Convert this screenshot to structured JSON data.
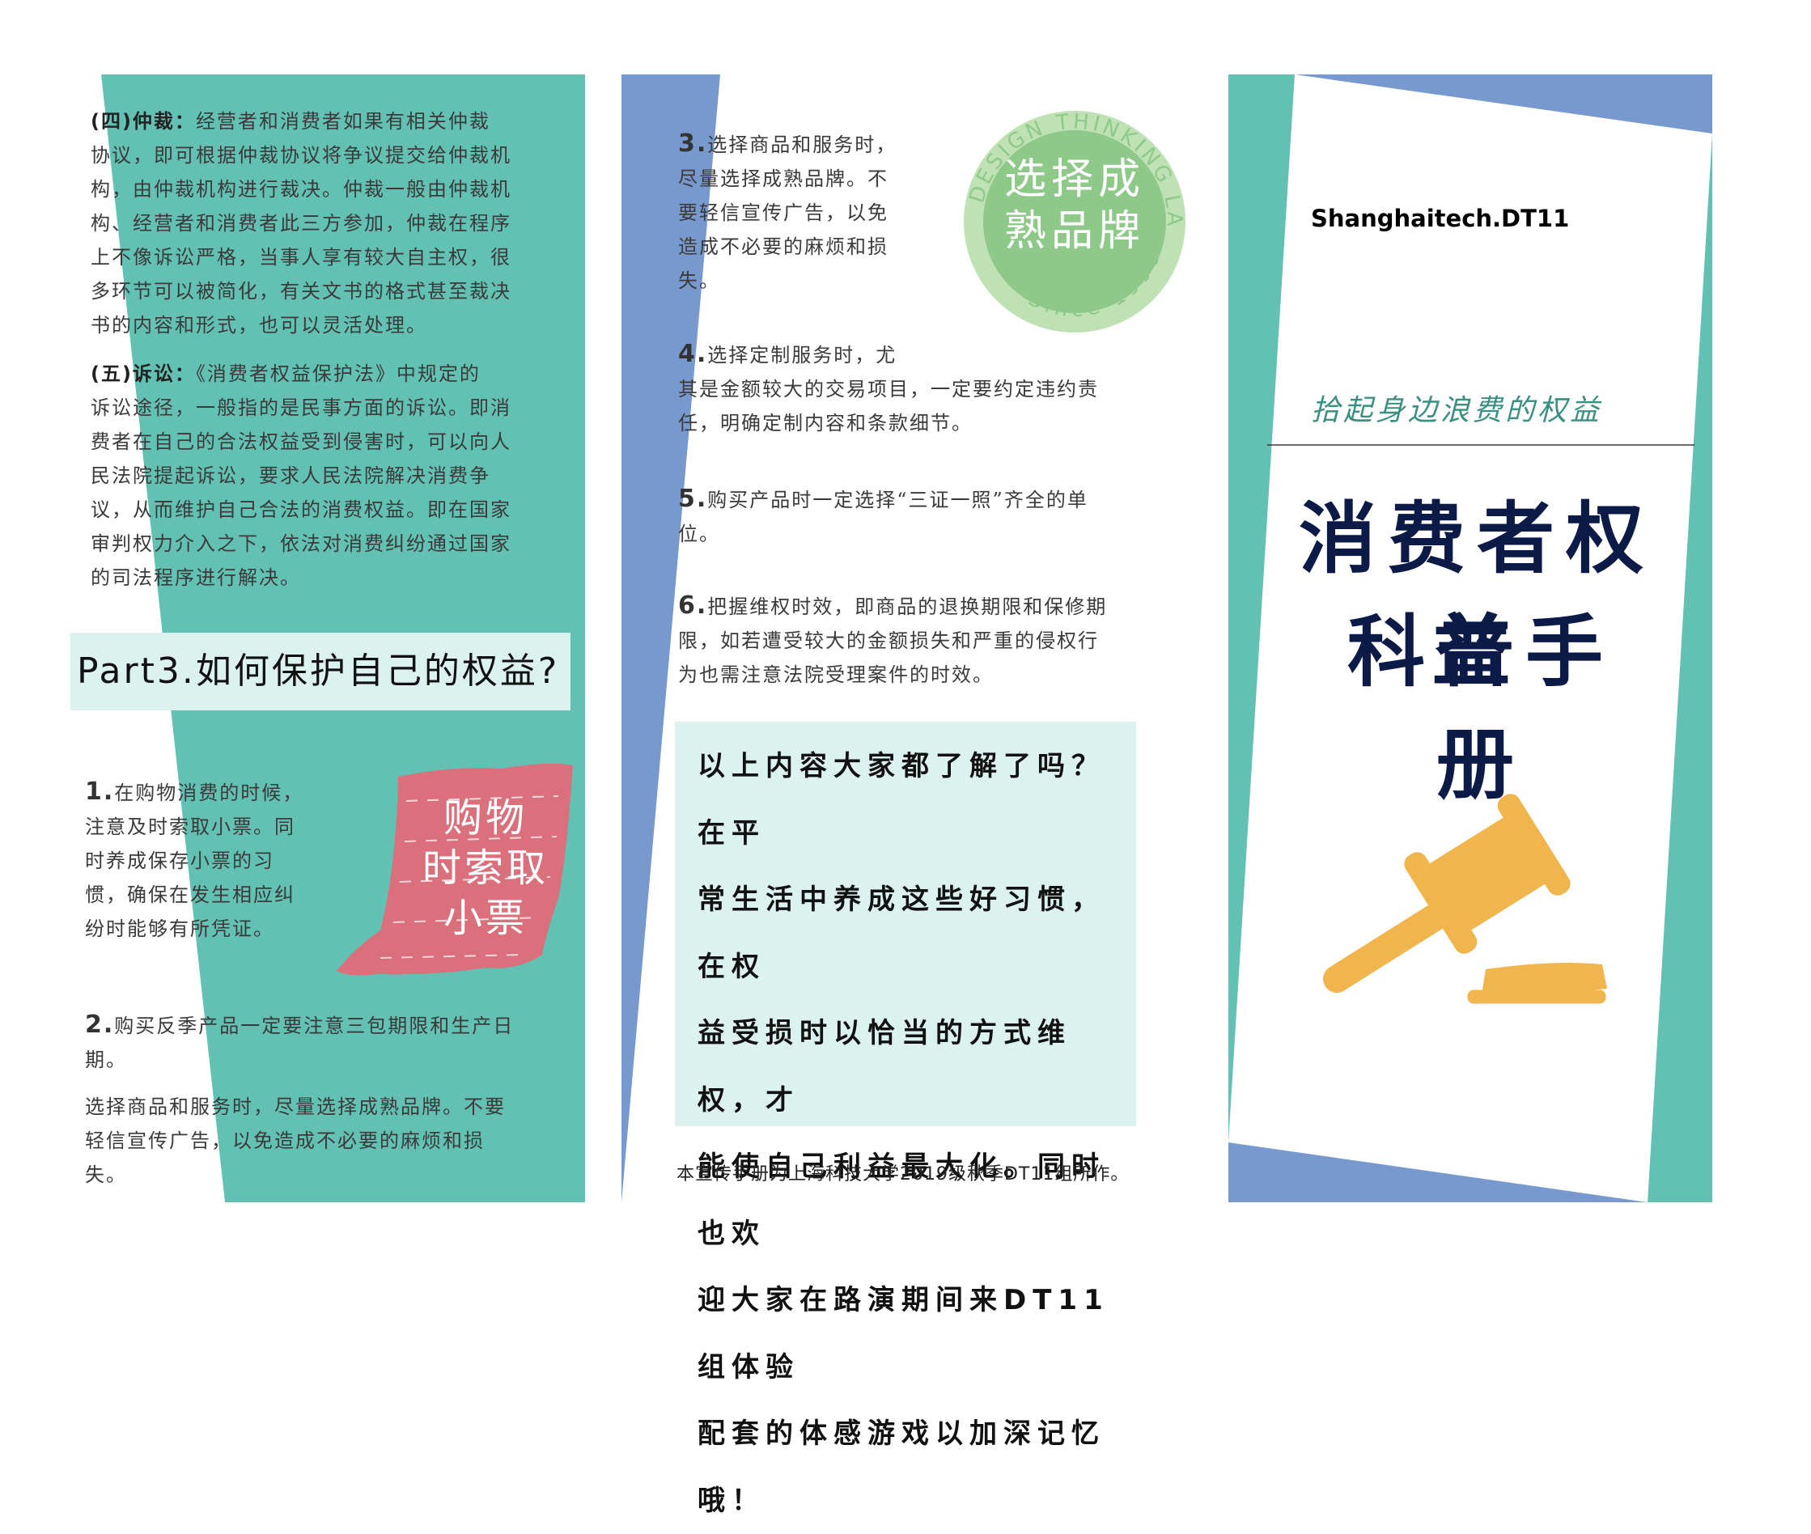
{
  "panel1": {
    "arbitration": {
      "heading": "(四)仲裁：",
      "lines": [
        "经营者和消费者如果有相关仲裁",
        "协议，即可根据仲裁协议将争议提交给仲裁机",
        "构，由仲裁机构进行裁决。仲裁一般由仲裁机",
        "构、经营者和消费者此三方参加，仲裁在程序",
        "上不像诉讼严格，当事人享有较大自主权，很",
        "多环节可以被简化，有关文书的格式甚至裁决",
        "书的内容和形式，也可以灵活处理。"
      ]
    },
    "litigation": {
      "heading": "(五)诉讼：",
      "lines": [
        "《消费者权益保护法》中规定的",
        "诉讼途径，一般指的是民事方面的诉讼。即消",
        "费者在自己的合法权益受到侵害时，可以向人",
        "民法院提起诉讼，要求人民法院解决消费争",
        "议，从而维护自己合法的消费权益。即在国家",
        "审判权力介入之下，依法对消费纠纷通过国家",
        "的司法程序进行解决。"
      ]
    },
    "part3_heading": "Part3.如何保护自己的权益?",
    "item1": {
      "num": "1.",
      "lines": [
        "在购物消费的时候，",
        "注意及时索取小票。同",
        "时养成保存小票的习",
        "惯，确保在发生相应纠",
        "纷时能够有所凭证。"
      ]
    },
    "receipt_sticker": [
      "购物",
      "时索取",
      "小票"
    ],
    "item2": {
      "num": "2.",
      "lines": [
        "购买反季产品一定要注意三包期限和生产日",
        "期。"
      ]
    },
    "item2_extra": [
      "选择商品和服务时，尽量选择成熟品牌。不要",
      "轻信宣传广告，以免造成不必要的麻烦和损",
      "失。"
    ]
  },
  "panel2": {
    "item3": {
      "num": "3.",
      "lines": [
        "选择商品和服务时，",
        "尽量选择成熟品牌。不",
        "要轻信宣传广告，以免",
        "造成不必要的麻烦和损",
        "失。"
      ]
    },
    "stamp": {
      "ring_top": "DESIGN THINKING LAB",
      "ring_bottom": "Since 1990",
      "main": [
        "选择成",
        "熟品牌"
      ]
    },
    "item4": {
      "num": "4.",
      "lines": [
        "选择定制服务时，尤",
        "其是金额较大的交易项目，一定要约定违约责",
        "任，明确定制内容和条款细节。"
      ]
    },
    "item5": {
      "num": "5.",
      "lines": [
        "购买产品时一定选择“三证一照”齐全的单",
        "位。"
      ]
    },
    "item6": {
      "num": "6.",
      "lines": [
        "把握维权时效，即商品的退换期限和保修期",
        "限，如若遭受较大的金额损失和严重的侵权行",
        "为也需注意法院受理案件的时效。"
      ]
    },
    "summary_lines": [
      "以上内容大家都了解了吗？在平",
      "常生活中养成这些好习惯，在权",
      "益受损时以恰当的方式维权，才",
      "能使自己利益最大化。同时也欢",
      "迎大家在路演期间来DT11组体验",
      "配套的体感游戏以加深记忆哦！"
    ],
    "footer_note": "本宣传手册为上海科技大学2019级秋季DT11组所作。"
  },
  "panel3": {
    "brand": "Shanghaitech.DT11",
    "subtitle": "拾起身边浪费的权益",
    "title_line1": "消费者权益",
    "title_line2": "科普手册",
    "icon": "gavel-icon"
  },
  "colors": {
    "teal": "#63c1b4",
    "blue": "#7899cd",
    "light_teal": "#dcf2ef",
    "pink": "#d9707c",
    "green_stamp": "#8fc98a",
    "gold": "#f0b54c",
    "navy": "#0b1a46"
  }
}
